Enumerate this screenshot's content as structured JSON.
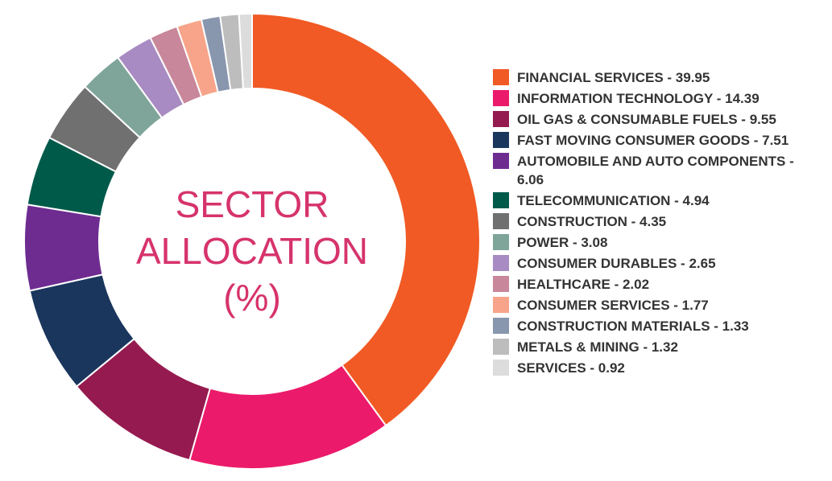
{
  "chart_data": {
    "type": "pie",
    "donut": true,
    "title": "SECTOR ALLOCATION (%)",
    "categories": [
      "FINANCIAL SERVICES - 39.95",
      "INFORMATION TECHNOLOGY - 14.39",
      "OIL GAS & CONSUMABLE FUELS - 9.55",
      "FAST MOVING CONSUMER GOODS - 7.51",
      "AUTOMOBILE AND AUTO COMPONENTS - 6.06",
      "TELECOMMUNICATION - 4.94",
      "CONSTRUCTION - 4.35",
      "POWER - 3.08",
      "CONSUMER DURABLES - 2.65",
      "HEALTHCARE - 2.02",
      "CONSUMER SERVICES - 1.77",
      "CONSTRUCTION MATERIALS - 1.33",
      "METALS & MINING - 1.32",
      "SERVICES - 0.92"
    ],
    "values": [
      39.95,
      14.39,
      9.55,
      7.51,
      6.06,
      4.94,
      4.35,
      3.08,
      2.65,
      2.02,
      1.77,
      1.33,
      1.32,
      0.92
    ],
    "colors": [
      "#f15a24",
      "#ec1a6a",
      "#951a4f",
      "#1b365d",
      "#6e2c91",
      "#005a4a",
      "#707070",
      "#7fa59a",
      "#a88bc2",
      "#c8879a",
      "#f7a48a",
      "#8896ae",
      "#bdbdbd",
      "#dcdcdc"
    ],
    "legend": "right"
  }
}
